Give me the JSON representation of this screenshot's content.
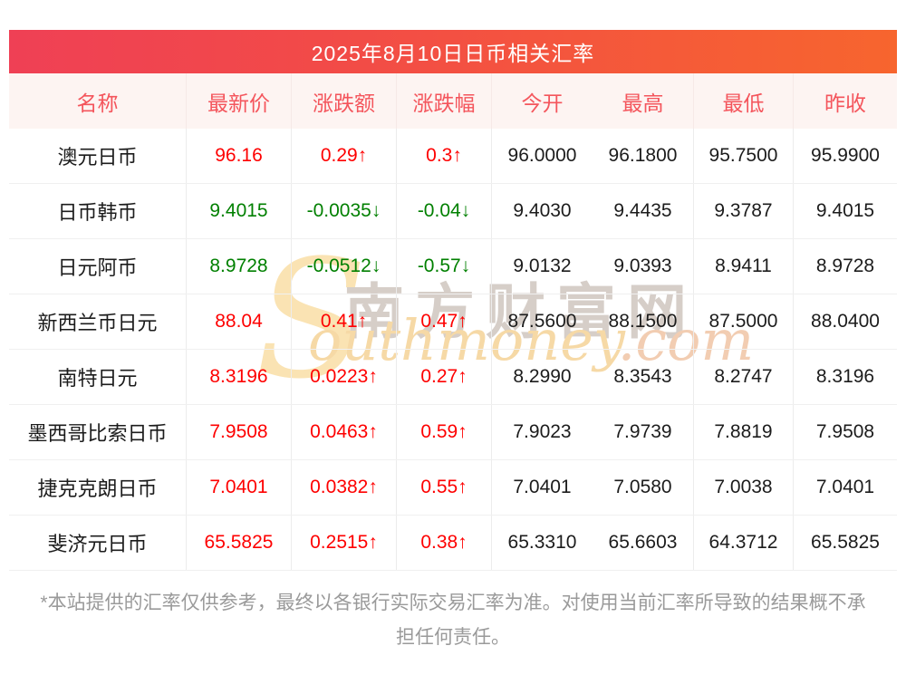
{
  "title": "2025年8月10日日币相关汇率",
  "colors": {
    "title_gradient_left": "#ef4055",
    "title_gradient_right": "#f7652e",
    "header_bg": "#fdf4f2",
    "header_text": "#f4555c",
    "up": "#fe0000",
    "down": "#018001"
  },
  "columns": [
    "名称",
    "最新价",
    "涨跌额",
    "涨跌幅",
    "今开",
    "最高",
    "最低",
    "昨收"
  ],
  "rows": [
    {
      "name": "澳元日币",
      "latest": "96.16",
      "change": "0.29↑",
      "pct": "0.3↑",
      "trend": "up",
      "open": "96.0000",
      "high": "96.1800",
      "low": "95.7500",
      "prev_close": "95.9900"
    },
    {
      "name": "日币韩币",
      "latest": "9.4015",
      "change": "-0.0035↓",
      "pct": "-0.04↓",
      "trend": "down",
      "open": "9.4030",
      "high": "9.4435",
      "low": "9.3787",
      "prev_close": "9.4015"
    },
    {
      "name": "日元阿币",
      "latest": "8.9728",
      "change": "-0.0512↓",
      "pct": "-0.57↓",
      "trend": "down",
      "open": "9.0132",
      "high": "9.0393",
      "low": "8.9411",
      "prev_close": "8.9728"
    },
    {
      "name": "新西兰币日元",
      "latest": "88.04",
      "change": "0.41↑",
      "pct": "0.47↑",
      "trend": "up",
      "open": "87.5600",
      "high": "88.1500",
      "low": "87.5000",
      "prev_close": "88.0400"
    },
    {
      "name": "南特日元",
      "latest": "8.3196",
      "change": "0.0223↑",
      "pct": "0.27↑",
      "trend": "up",
      "open": "8.2990",
      "high": "8.3543",
      "low": "8.2747",
      "prev_close": "8.3196"
    },
    {
      "name": "墨西哥比索日币",
      "latest": "7.9508",
      "change": "0.0463↑",
      "pct": "0.59↑",
      "trend": "up",
      "open": "7.9023",
      "high": "7.9739",
      "low": "7.8819",
      "prev_close": "7.9508"
    },
    {
      "name": "捷克克朗日币",
      "latest": "7.0401",
      "change": "0.0382↑",
      "pct": "0.55↑",
      "trend": "up",
      "open": "7.0401",
      "high": "7.0580",
      "low": "7.0038",
      "prev_close": "7.0401"
    },
    {
      "name": "斐济元日币",
      "latest": "65.5825",
      "change": "0.2515↑",
      "pct": "0.38↑",
      "trend": "up",
      "open": "65.3310",
      "high": "65.6603",
      "low": "64.3712",
      "prev_close": "65.5825"
    }
  ],
  "watermark": {
    "s": "S",
    "cn": "南方财富网",
    "en": "outhmoney",
    "en_suffix": ".com"
  },
  "footer": "*本站提供的汇率仅供参考，最终以各银行实际交易汇率为准。对使用当前汇率所导致的结果概不承担任何责任。"
}
